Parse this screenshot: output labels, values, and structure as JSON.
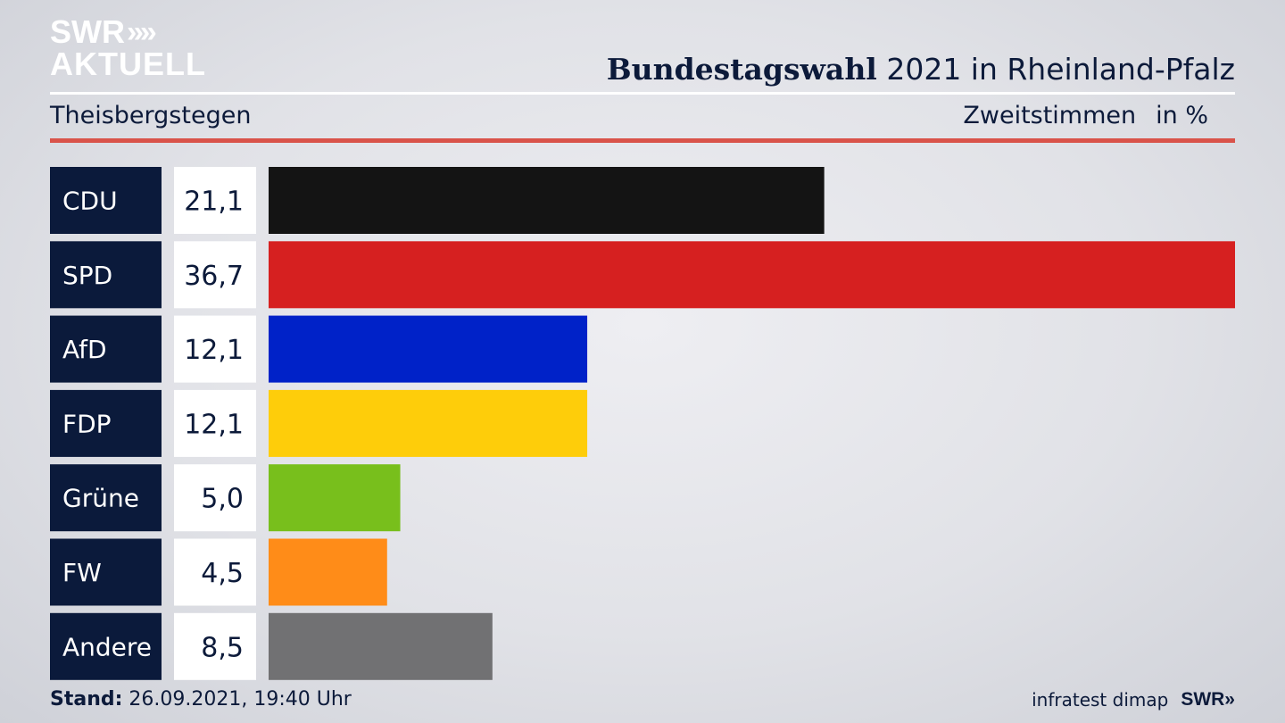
{
  "header": {
    "logo_line1": "SWR",
    "logo_chevrons": "»",
    "logo_line2": "AKTUELL",
    "title_bold": "Bundestagswahl",
    "title_rest": " 2021 in Rheinland-Pfalz",
    "location": "Theisbergstegen",
    "measure": "Zweitstimmen",
    "unit": "in %"
  },
  "footer": {
    "stand_label": "Stand:",
    "stand_value": " 26.09.2021, 19:40 Uhr",
    "source": "infratest dimap",
    "brand": "SWR»"
  },
  "chart_data": {
    "type": "bar",
    "orientation": "horizontal",
    "categories": [
      "CDU",
      "SPD",
      "AfD",
      "FDP",
      "Grüne",
      "FW",
      "Andere"
    ],
    "values": [
      21.1,
      36.7,
      12.1,
      12.1,
      5.0,
      4.5,
      8.5
    ],
    "value_labels": [
      "21,1",
      "36,7",
      "12,1",
      "12,1",
      "5,0",
      "4,5",
      "8,5"
    ],
    "colors": [
      "#141414",
      "#d62020",
      "#0022c8",
      "#fecd0a",
      "#78bf1c",
      "#ff8c18",
      "#717173"
    ],
    "xlim": [
      0,
      36.7
    ],
    "grid": false,
    "legend": "none"
  }
}
